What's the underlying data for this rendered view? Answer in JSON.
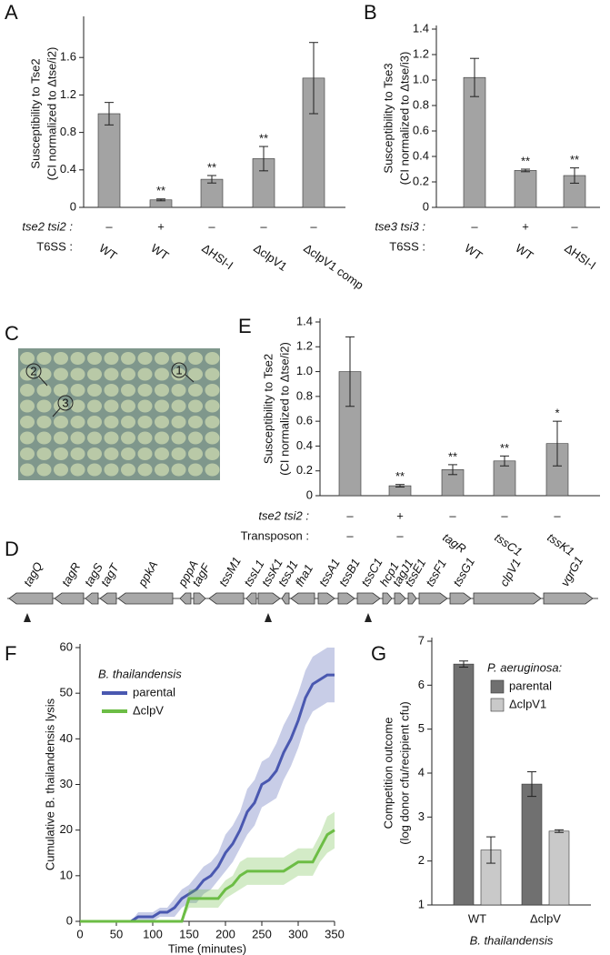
{
  "chart_data": [
    {
      "type": "bar",
      "label": "A",
      "y_label": [
        "Susceptibility to Tse2",
        "(CI normalized to Δtse/i2)"
      ],
      "values": [
        1.0,
        0.08,
        0.3,
        0.52,
        1.38
      ],
      "errors": [
        0.12,
        0.01,
        0.04,
        0.13,
        0.38
      ],
      "annotations": [
        null,
        "**",
        "**",
        "**",
        null
      ],
      "color": "#a3a3a3",
      "rows": [
        {
          "label": "tse2 tsi2 :",
          "values": [
            "–",
            "+",
            "–",
            "–",
            "–"
          ]
        },
        {
          "label": "T6SS :",
          "values": [
            "WT",
            "WT",
            "ΔHSI-I",
            "ΔclpV1",
            "ΔclpV1 comp"
          ]
        }
      ],
      "ylim": [
        0,
        2.0
      ],
      "yticks": [
        0,
        0.4,
        0.8,
        1.2,
        1.6
      ]
    },
    {
      "type": "bar",
      "label": "B",
      "y_label": [
        "Susceptibility to Tse3",
        "(CI normalized to Δtse/i3)"
      ],
      "values": [
        1.02,
        0.29,
        0.25
      ],
      "errors": [
        0.15,
        0.01,
        0.06
      ],
      "annotations": [
        null,
        "**",
        "**"
      ],
      "color": "#a3a3a3",
      "rows": [
        {
          "label": "tse3 tsi3 :",
          "values": [
            "–",
            "+",
            "–"
          ]
        },
        {
          "label": "T6SS :",
          "values": [
            "WT",
            "WT",
            "ΔHSI-I"
          ]
        }
      ],
      "ylim": [
        0,
        1.4
      ],
      "yticks": [
        0,
        0.2,
        0.4,
        0.6,
        0.8,
        {
          "value": 1,
          "label": "1.0"
        },
        1.2,
        1.4
      ]
    },
    {
      "type": "bar",
      "label": "E",
      "y_label": [
        "Susceptibility to Tse2",
        "(CI normalized to Δtse/i2)"
      ],
      "values": [
        1.0,
        0.08,
        0.21,
        0.28,
        0.42
      ],
      "errors": [
        0.28,
        0.01,
        0.04,
        0.04,
        0.18
      ],
      "annotations": [
        null,
        "**",
        "**",
        "**",
        "*"
      ],
      "color": "#a3a3a3",
      "rows": [
        {
          "label": "tse2 tsi2 :",
          "values": [
            "–",
            "+",
            "–",
            "–",
            "–"
          ]
        },
        {
          "label": "Transposon :",
          "values": [
            "–",
            "–",
            "tagR",
            "tssC1",
            "tssK1"
          ]
        }
      ],
      "ylim": [
        0,
        1.4
      ],
      "yticks": [
        0,
        0.2,
        0.4,
        0.6,
        0.8,
        {
          "value": 1,
          "label": "1.0"
        },
        1.2,
        1.4
      ]
    },
    {
      "type": "line",
      "label": "F",
      "y_label": "Cumulative B. thailandensis lysis",
      "x_label": "Time (minutes)",
      "legend_title": "B. thailandensis",
      "x": [
        0,
        10,
        20,
        30,
        40,
        50,
        60,
        70,
        80,
        90,
        100,
        110,
        120,
        130,
        140,
        150,
        160,
        170,
        180,
        190,
        200,
        210,
        220,
        230,
        240,
        250,
        260,
        270,
        280,
        290,
        300,
        310,
        320,
        330,
        340,
        350
      ],
      "series": [
        {
          "name": "parental",
          "color": "#4a58b0",
          "values": [
            0,
            0,
            0,
            0,
            0,
            0,
            0,
            0,
            1,
            1,
            1,
            2,
            2,
            3,
            5,
            6,
            7,
            9,
            10,
            12,
            15,
            17,
            20,
            24,
            26,
            30,
            31,
            33,
            37,
            40,
            44,
            49,
            52,
            53,
            54,
            54
          ],
          "lower": [
            0,
            0,
            0,
            0,
            0,
            0,
            0,
            0,
            0,
            0,
            0,
            1,
            1,
            1,
            3,
            4,
            4,
            6,
            7,
            9,
            11,
            13,
            16,
            19,
            21,
            25,
            26,
            27,
            31,
            34,
            38,
            43,
            46,
            47,
            48,
            48
          ],
          "upper": [
            0,
            0,
            0,
            0,
            0,
            0,
            0,
            0,
            2,
            2,
            2,
            3,
            3,
            5,
            7,
            8,
            10,
            12,
            13,
            15,
            19,
            21,
            24,
            29,
            31,
            35,
            36,
            39,
            43,
            46,
            50,
            55,
            58,
            59,
            60,
            60
          ]
        },
        {
          "name": "ΔclpV",
          "color": "#6cbd45",
          "values": [
            0,
            0,
            0,
            0,
            0,
            0,
            0,
            0,
            0,
            0,
            0,
            0,
            0,
            0,
            0,
            5,
            5,
            5,
            5,
            5,
            7,
            8,
            10,
            11,
            11,
            11,
            11,
            11,
            11,
            12,
            13,
            13,
            13,
            16,
            19,
            20
          ],
          "lower": [
            0,
            0,
            0,
            0,
            0,
            0,
            0,
            0,
            0,
            0,
            0,
            0,
            0,
            0,
            0,
            3,
            3,
            3,
            3,
            3,
            5,
            6,
            7,
            8,
            8,
            8,
            8,
            8,
            8,
            9,
            10,
            10,
            10,
            13,
            15,
            16
          ],
          "upper": [
            0,
            0,
            0,
            0,
            0,
            0,
            0,
            0,
            0,
            0,
            0,
            0,
            0,
            0,
            0,
            7,
            7,
            7,
            7,
            7,
            9,
            10,
            13,
            14,
            14,
            14,
            14,
            14,
            14,
            15,
            16,
            16,
            16,
            19,
            23,
            24
          ]
        }
      ],
      "xlim": [
        0,
        350
      ],
      "xticks": [
        0,
        50,
        100,
        150,
        200,
        250,
        300,
        350
      ],
      "ylim": [
        0,
        60
      ],
      "yticks": [
        0,
        10,
        20,
        30,
        40,
        50,
        60
      ]
    },
    {
      "type": "bar",
      "label": "G",
      "y_label": [
        "Competition outcome",
        "(log donor cfu/recipient cfu)"
      ],
      "x_label": "B. thailandensis",
      "legend_title": "P. aeruginosa:",
      "categories": [
        "WT",
        "ΔclpV"
      ],
      "series": [
        {
          "name": "parental",
          "color": "#707070",
          "values": [
            6.48,
            3.75
          ],
          "errors": [
            0.07,
            0.28
          ]
        },
        {
          "name": "ΔclpV1",
          "color": "#c9c9c9",
          "values": [
            2.25,
            2.68
          ],
          "errors": [
            0.3,
            0.03
          ]
        }
      ],
      "ylim": [
        1,
        7
      ],
      "yticks": [
        1,
        2,
        3,
        4,
        5,
        6,
        7
      ]
    }
  ],
  "panel_c": {
    "label": "C",
    "markers": [
      "1",
      "2",
      "3"
    ]
  },
  "panel_d": {
    "label": "D",
    "genes": [
      "tagQ",
      "tagR",
      "tagS",
      "tagT",
      "ppkA",
      "pppA",
      "tagF",
      "tssM1",
      "tssL1",
      "tssK1",
      "tssJ1",
      "fha1",
      "tssA1",
      "tssB1",
      "tssC1",
      "hcp1",
      "tagJ1",
      "tssE1",
      "tssF1",
      "tssG1",
      "clpV1",
      "vgrG1"
    ]
  }
}
